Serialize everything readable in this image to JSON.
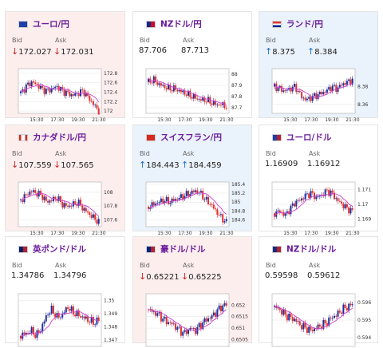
{
  "colors": {
    "up_candle": "#1f2f9a",
    "down_candle": "#e03030",
    "ma_line": "#d040d0",
    "arrow_down": "#d02020",
    "arrow_up": "#1e6fc7",
    "pair_text": "#6a1b9a"
  },
  "labels": {
    "bid": "Bid",
    "ask": "Ask"
  },
  "cards": [
    {
      "pair": "ユーロ/円",
      "flag": "eu-flag",
      "trend": "down",
      "bid": "172.027",
      "ask": "172.031",
      "chart": {
        "yticks": [
          "172.8",
          "172.6",
          "172.4",
          "172.2",
          "172"
        ],
        "xticks": [
          "15:30",
          "17:30",
          "19:30",
          "21:30"
        ],
        "min": 171.95,
        "max": 172.9,
        "start": 172.45,
        "shape": [
          0.45,
          0.6,
          0.7,
          0.65,
          0.55,
          0.5,
          0.55,
          0.6,
          0.5,
          0.45,
          0.4,
          0.45,
          0.5,
          0.35,
          0.2,
          0.05
        ]
      }
    },
    {
      "pair": "NZドル/円",
      "flag": "nz-flag",
      "trend": "flat",
      "bid": "87.706",
      "ask": "87.713",
      "chart": {
        "yticks": [
          "88",
          "87.9",
          "87.8",
          "87.7"
        ],
        "xticks": [
          "15:30",
          "17:30",
          "19:30",
          "21:30"
        ],
        "min": 87.65,
        "max": 88.05,
        "start": 87.9,
        "shape": [
          0.7,
          0.75,
          0.65,
          0.6,
          0.55,
          0.55,
          0.5,
          0.45,
          0.4,
          0.35,
          0.3,
          0.3,
          0.25,
          0.2,
          0.2,
          0.15
        ]
      }
    },
    {
      "pair": "ランド/円",
      "flag": "za-flag",
      "trend": "up",
      "bid": "8.375",
      "ask": "8.384",
      "chart": {
        "yticks": [
          "8.38",
          "8.36"
        ],
        "xticks": [
          "15:30",
          "17:30",
          "19:30",
          "21:30"
        ],
        "min": 8.35,
        "max": 8.4,
        "start": 8.375,
        "shape": [
          0.6,
          0.55,
          0.5,
          0.55,
          0.6,
          0.4,
          0.3,
          0.35,
          0.4,
          0.45,
          0.5,
          0.6,
          0.55,
          0.65,
          0.7,
          0.75
        ]
      }
    },
    {
      "pair": "カナダドル/円",
      "flag": "ca-flag",
      "trend": "down",
      "bid": "107.559",
      "ask": "107.565",
      "chart": {
        "yticks": [
          "108",
          "107.8",
          "107.6"
        ],
        "xticks": [
          "15:30",
          "17:30",
          "19:30",
          "21:30"
        ],
        "min": 107.5,
        "max": 108.15,
        "start": 107.85,
        "shape": [
          0.6,
          0.7,
          0.8,
          0.75,
          0.7,
          0.55,
          0.6,
          0.65,
          0.5,
          0.45,
          0.5,
          0.55,
          0.4,
          0.3,
          0.2,
          0.1
        ]
      }
    },
    {
      "pair": "スイスフラン/円",
      "flag": "ch-flag",
      "trend": "up",
      "bid": "184.443",
      "ask": "184.459",
      "chart": {
        "yticks": [
          "185.4",
          "185.2",
          "185",
          "184.8",
          "184.6"
        ],
        "xticks": [
          "15:30",
          "17:30",
          "19:30",
          "21:30"
        ],
        "min": 184.45,
        "max": 185.45,
        "start": 184.8,
        "shape": [
          0.45,
          0.5,
          0.55,
          0.6,
          0.55,
          0.6,
          0.65,
          0.7,
          0.75,
          0.8,
          0.75,
          0.6,
          0.5,
          0.35,
          0.2,
          0.1
        ]
      }
    },
    {
      "pair": "ユーロ/ドル",
      "flag": "eu-us-flag",
      "trend": "flat",
      "bid": "1.16909",
      "ask": "1.16912",
      "chart": {
        "yticks": [
          "1.171",
          "1.17",
          "1.169"
        ],
        "xticks": [
          "15:30",
          "17:30",
          "19:30",
          "21:30"
        ],
        "min": 1.1685,
        "max": 1.1715,
        "start": 1.1695,
        "shape": [
          0.3,
          0.35,
          0.25,
          0.4,
          0.55,
          0.6,
          0.7,
          0.75,
          0.65,
          0.7,
          0.8,
          0.75,
          0.6,
          0.5,
          0.4,
          0.35
        ]
      }
    },
    {
      "pair": "英ポンド/ドル",
      "flag": "gb-us-flag",
      "trend": "flat",
      "bid": "1.34786",
      "ask": "1.34796",
      "chart": {
        "yticks": [
          "1.35",
          "1.349",
          "1.348",
          "1.347"
        ],
        "xticks": [],
        "min": 1.3465,
        "max": 1.3505,
        "start": 1.347,
        "shape": [
          0.2,
          0.25,
          0.3,
          0.2,
          0.35,
          0.6,
          0.7,
          0.55,
          0.6,
          0.75,
          0.65,
          0.6,
          0.55,
          0.5,
          0.45,
          0.5
        ]
      }
    },
    {
      "pair": "豪ドル/ドル",
      "flag": "au-us-flag",
      "trend": "down",
      "bid": "0.65221",
      "ask": "0.65225",
      "chart": {
        "yticks": [
          "0.652",
          "0.6515",
          "0.651",
          "0.6505"
        ],
        "xticks": [],
        "min": 0.6502,
        "max": 0.6525,
        "start": 0.6518,
        "shape": [
          0.7,
          0.65,
          0.6,
          0.5,
          0.45,
          0.4,
          0.3,
          0.25,
          0.35,
          0.3,
          0.4,
          0.5,
          0.55,
          0.65,
          0.75,
          0.8
        ]
      }
    },
    {
      "pair": "NZドル/ドル",
      "flag": "nz-us-flag",
      "trend": "flat",
      "bid": "0.59598",
      "ask": "0.59612",
      "chart": {
        "yticks": [
          "0.596",
          "0.595",
          "0.594"
        ],
        "xticks": [],
        "min": 0.5935,
        "max": 0.5965,
        "start": 0.5955,
        "shape": [
          0.75,
          0.7,
          0.6,
          0.55,
          0.5,
          0.4,
          0.35,
          0.3,
          0.35,
          0.4,
          0.45,
          0.55,
          0.6,
          0.7,
          0.75,
          0.8
        ]
      }
    }
  ]
}
